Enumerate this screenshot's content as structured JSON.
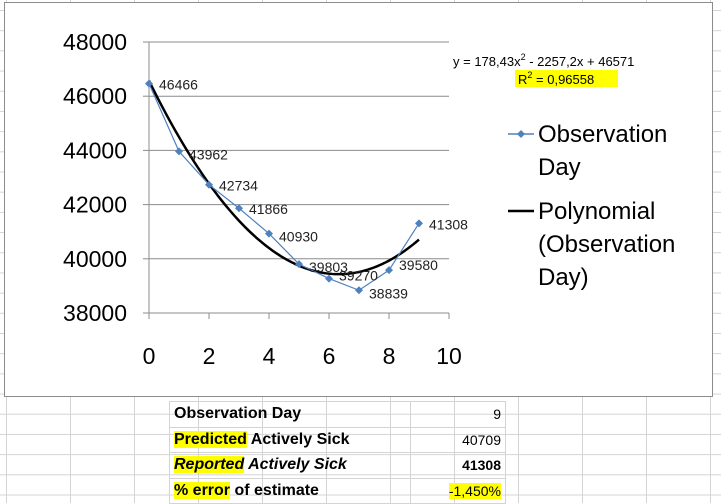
{
  "chart_data": {
    "type": "scatter",
    "xlim": [
      0,
      10
    ],
    "ylim": [
      38000,
      48000
    ],
    "x_ticks": [
      "0",
      "2",
      "4",
      "6",
      "8",
      "10"
    ],
    "y_ticks": [
      "48000",
      "46000",
      "44000",
      "42000",
      "40000",
      "38000"
    ],
    "grid": "horizontal",
    "legend_position": "right",
    "series": [
      {
        "name": "Observation Day",
        "color": "#4f81bd",
        "marker": "diamond",
        "x": [
          0,
          1,
          2,
          3,
          4,
          5,
          6,
          7,
          8,
          9
        ],
        "y": [
          46466,
          43962,
          42734,
          41866,
          40930,
          39803,
          39270,
          38839,
          39580,
          41308
        ],
        "labels": [
          "46466",
          "43962",
          "42734",
          "41866",
          "40930",
          "39803",
          "39270",
          "38839",
          "39580",
          "41308"
        ]
      },
      {
        "name": "Polynomial (Observation Day)",
        "color": "#000000",
        "type": "trendline",
        "coefficients": [
          178.43,
          -2257.2,
          46571
        ],
        "x_range": [
          0,
          9
        ]
      }
    ],
    "legend": {
      "observation_line1": "Observation",
      "observation_line2": "Day",
      "poly_line1": "Polynomial",
      "poly_line2": "(Observation",
      "poly_line3": "Day)"
    },
    "equation": {
      "main": "y = 178,43x",
      "sup": "2",
      "rest": " - 2257,2x + 46571",
      "r_label": "R",
      "r_sup": "2",
      "r_value": " = 0,96558"
    }
  },
  "table": {
    "row1_label": "Observation Day",
    "row1_value": "9",
    "row2_label_hl": "Predicted",
    "row2_label_rest": " Actively Sick",
    "row2_value": "40709",
    "row3_label_hl": "Reported",
    "row3_label_rest": " Actively Sick",
    "row3_value": "41308",
    "row4_label_hl": "% error",
    "row4_label_rest": " of estimate",
    "row4_value": "-1,450%"
  },
  "colors": {
    "highlight": "#ffff00",
    "series": "#4f81bd",
    "trendline": "#000000"
  }
}
